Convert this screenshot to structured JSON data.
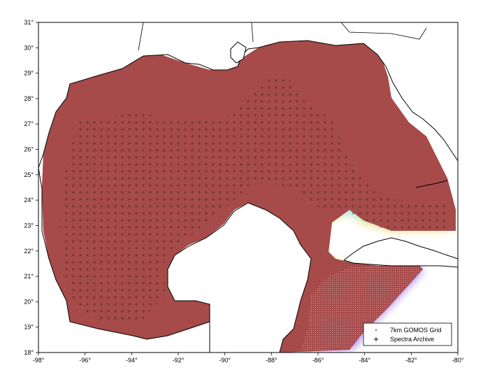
{
  "map": {
    "x_axis": {
      "min": -98,
      "max": -80,
      "ticks": [
        -98,
        -96,
        -94,
        -92,
        -90,
        -88,
        -86,
        -84,
        -82,
        -80
      ],
      "tick_labels": [
        "-98°",
        "-96°",
        "-94°",
        "-92°",
        "-90°",
        "-88°",
        "-86°",
        "-84°",
        "-82°",
        "-80°"
      ]
    },
    "y_axis": {
      "min": 18,
      "max": 31,
      "ticks": [
        18,
        19,
        20,
        21,
        22,
        23,
        24,
        25,
        26,
        27,
        28,
        29,
        30,
        31
      ],
      "tick_labels": [
        "18°",
        "19°",
        "20°",
        "21°",
        "22°",
        "23°",
        "24°",
        "25°",
        "26°",
        "27°",
        "28°",
        "29°",
        "30°",
        "31°"
      ]
    },
    "legend": {
      "placement": "bottom-right",
      "items": [
        {
          "label": "7km GOMOS Grid",
          "marker": "small-dot",
          "color": "#000000"
        },
        {
          "label": "Spectra Archive",
          "marker": "plus",
          "color": "#000000"
        }
      ]
    },
    "colors": {
      "land": "#ffffff",
      "coastline": "#000000",
      "shelf": "#a64a4a",
      "slope_yellow": "#f5e27a",
      "slope_green": "#8fe08f",
      "deep_cyan": "#7fe6f0",
      "deep_blue": "#6a80f0",
      "caribbean_violet": "#9a6cf0"
    }
  }
}
